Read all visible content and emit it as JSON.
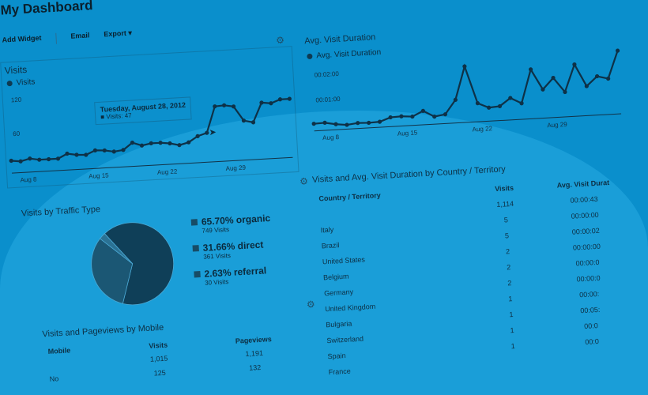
{
  "header": {
    "title": "My Dashboard"
  },
  "toolbar": {
    "add_widget": "Add Widget",
    "email": "Email",
    "export": "Export ▾"
  },
  "visits_widget": {
    "title": "Visits",
    "legend": "Visits",
    "tooltip": {
      "date": "Tuesday, August 28, 2012",
      "value": "■ Visits: 47"
    }
  },
  "duration_widget": {
    "title": "Avg. Visit Duration",
    "legend": "Avg. Visit Duration"
  },
  "chart_data": [
    {
      "type": "line",
      "name": "Visits",
      "x_ticks": [
        "Aug 8",
        "Aug 15",
        "Aug 22",
        "Aug 29"
      ],
      "y_ticks": [
        "60",
        "120"
      ],
      "ylim": [
        0,
        140
      ],
      "values": [
        22,
        20,
        24,
        21,
        21,
        21,
        29,
        26,
        25,
        32,
        31,
        28,
        30,
        42,
        36,
        39,
        39,
        37,
        33,
        37,
        47,
        52,
        98,
        99,
        96,
        70,
        66,
        100,
        98,
        104,
        104
      ]
    },
    {
      "type": "line",
      "name": "Avg. Visit Duration",
      "x_ticks": [
        "Aug 8",
        "Aug 15",
        "Aug 22",
        "Aug 29"
      ],
      "y_ticks": [
        "00:01:00",
        "00:02:00"
      ],
      "ylim_seconds": [
        0,
        150
      ],
      "values_seconds": [
        17,
        18,
        13,
        10,
        13,
        12,
        13,
        22,
        23,
        21,
        33,
        18,
        22,
        55,
        133,
        44,
        32,
        34,
        52,
        38,
        117,
        68,
        94,
        59,
        123,
        70,
        92,
        85,
        150
      ]
    },
    {
      "type": "pie",
      "title": "Visits by Traffic Type",
      "slices": [
        {
          "label": "65.70% organic",
          "sub": "749 Visits",
          "percent": 65.7,
          "color": "#0f3f58"
        },
        {
          "label": "31.66% direct",
          "sub": "361 Visits",
          "percent": 31.66,
          "color": "#1b5774"
        },
        {
          "label": "2.63% referral",
          "sub": "30 Visits",
          "percent": 2.63,
          "color": "#2b7294"
        }
      ]
    }
  ],
  "mobile_table": {
    "title": "Visits and Pageviews by Mobile",
    "headers": [
      "Mobile",
      "Visits",
      "Pageviews"
    ],
    "rows": [
      [
        "",
        "1,015",
        "1,191"
      ],
      [
        "No",
        "125",
        "132"
      ]
    ]
  },
  "country_table": {
    "title": "Visits and Avg. Visit Duration by Country / Territory",
    "headers": [
      "Country / Territory",
      "Visits",
      "Avg. Visit Durat"
    ],
    "rows": [
      [
        "",
        "1,114",
        "00:00:43"
      ],
      [
        "Italy",
        "5",
        "00:00:00"
      ],
      [
        "Brazil",
        "5",
        "00:00:02"
      ],
      [
        "United States",
        "2",
        "00:00:00"
      ],
      [
        "Belgium",
        "2",
        "00:00:0"
      ],
      [
        "Germany",
        "2",
        "00:00:0"
      ],
      [
        "United Kingdom",
        "1",
        "00:00:"
      ],
      [
        "Bulgaria",
        "1",
        "00:05:"
      ],
      [
        "Switzerland",
        "1",
        "00:0"
      ],
      [
        "Spain",
        "1",
        "00:0"
      ],
      [
        "France",
        "",
        ""
      ]
    ]
  }
}
